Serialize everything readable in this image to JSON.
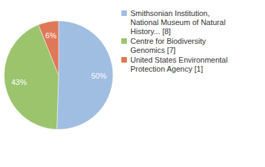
{
  "chart_data": {
    "type": "pie",
    "categories": [
      "Smithsonian Institution, National Museum of Natural History... [8]",
      "Centre for Biodiversity Genomics [7]",
      "United States Environmental Protection Agency [1]"
    ],
    "values": [
      50,
      43,
      6
    ],
    "value_labels": [
      "50%",
      "43%",
      "6%"
    ],
    "colors": [
      "#a0bde2",
      "#9bc46d",
      "#df7858"
    ],
    "data_labels": true,
    "legend": "right"
  }
}
